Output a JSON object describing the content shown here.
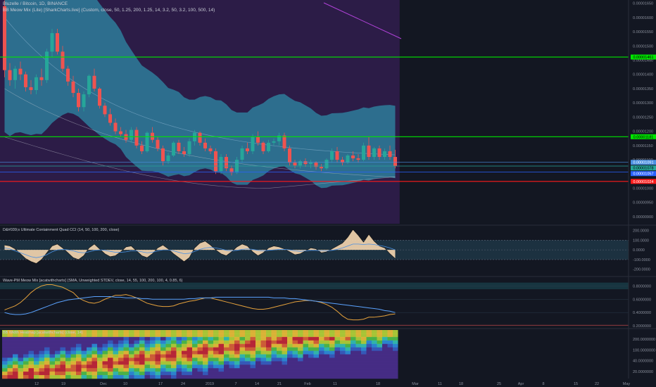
{
  "header": {
    "symbol": "Bluzelle / Bitcoin, 1D, BINANCE",
    "indicator_1": "BB Meow Mix (Lite) [SharkCharts.live] (Custom, close, 50, 1.25, 200, 1.25, 14, 3.2, 50, 3.2, 100, 500, 14)"
  },
  "panes": {
    "cci_label": "D&#039;s Ultimate Containment Quad CCI (14, 50, 100, 200, close)",
    "wave_label": "Wave-PM Meow Mix [acatwithcharts] (SMA, Unweighted STDEV, close, 14, 55, 100, 200, 100, 4, 0.85, 6)",
    "heat_label": "BB Width Heatmap [acatwithcharts] (close, 14)"
  },
  "colors": {
    "background": "#131722",
    "band_fill": "#2e7c9b",
    "purple_zone": "#3b1f5c",
    "bull": "#26a69a",
    "bear": "#ef5350",
    "green_line": "#00e600",
    "red_line": "#ff1a1a",
    "blue_line": "#4a90e2"
  },
  "chart_data": [
    {
      "type": "candlestick",
      "title": "Bluzelle / Bitcoin, 1D, BINANCE",
      "x_tick_labels": [
        "12",
        "19",
        "Dec",
        "10",
        "17",
        "24",
        "2019",
        "7",
        "14",
        "21",
        "Feb",
        "11",
        "18",
        "Mar",
        "11",
        "18",
        "25",
        "Apr",
        "8",
        "15",
        "22",
        "May"
      ],
      "y_tick_labels": [
        "0.00001650",
        "0.00001600",
        "0.00001550",
        "0.00001500",
        "0.00001450",
        "0.00001400",
        "0.00001350",
        "0.00001300",
        "0.00001250",
        "0.00001200",
        "0.00001150",
        "0.00001100",
        "0.00001050",
        "0.00001000",
        "0.00000950",
        "0.00000900"
      ],
      "ylim": [
        8.9e-06,
        1.66e-05
      ],
      "ohlc": [
        [
          1.64e-05,
          1.66e-05,
          1.39e-05,
          1.415e-05
        ],
        [
          1.415e-05,
          1.44e-05,
          1.36e-05,
          1.38e-05
        ],
        [
          1.38e-05,
          1.43e-05,
          1.35e-05,
          1.42e-05
        ],
        [
          1.42e-05,
          1.445e-05,
          1.38e-05,
          1.4e-05
        ],
        [
          1.4e-05,
          1.41e-05,
          1.34e-05,
          1.355e-05
        ],
        [
          1.355e-05,
          1.38e-05,
          1.33e-05,
          1.345e-05
        ],
        [
          1.345e-05,
          1.4e-05,
          1.33e-05,
          1.39e-05
        ],
        [
          1.39e-05,
          1.42e-05,
          1.36e-05,
          1.38e-05
        ],
        [
          1.38e-05,
          1.49e-05,
          1.37e-05,
          1.48e-05
        ],
        [
          1.48e-05,
          1.56e-05,
          1.46e-05,
          1.545e-05
        ],
        [
          1.545e-05,
          1.56e-05,
          1.47e-05,
          1.48e-05
        ],
        [
          1.48e-05,
          1.5e-05,
          1.41e-05,
          1.42e-05
        ],
        [
          1.42e-05,
          1.43e-05,
          1.36e-05,
          1.375e-05
        ],
        [
          1.375e-05,
          1.395e-05,
          1.32e-05,
          1.335e-05
        ],
        [
          1.335e-05,
          1.35e-05,
          1.27e-05,
          1.285e-05
        ],
        [
          1.285e-05,
          1.34e-05,
          1.27e-05,
          1.33e-05
        ],
        [
          1.33e-05,
          1.4e-05,
          1.32e-05,
          1.395e-05
        ],
        [
          1.395e-05,
          1.42e-05,
          1.34e-05,
          1.35e-05
        ],
        [
          1.35e-05,
          1.355e-05,
          1.28e-05,
          1.29e-05
        ],
        [
          1.29e-05,
          1.3e-05,
          1.25e-05,
          1.26e-05
        ],
        [
          1.26e-05,
          1.28e-05,
          1.22e-05,
          1.23e-05
        ],
        [
          1.23e-05,
          1.245e-05,
          1.19e-05,
          1.2e-05
        ],
        [
          1.2e-05,
          1.215e-05,
          1.18e-05,
          1.19e-05
        ],
        [
          1.19e-05,
          1.205e-05,
          1.16e-05,
          1.17e-05
        ],
        [
          1.17e-05,
          1.215e-05,
          1.16e-05,
          1.205e-05
        ],
        [
          1.205e-05,
          1.215e-05,
          1.14e-05,
          1.15e-05
        ],
        [
          1.15e-05,
          1.165e-05,
          1.12e-05,
          1.13e-05
        ],
        [
          1.13e-05,
          1.2e-05,
          1.125e-05,
          1.195e-05
        ],
        [
          1.195e-05,
          1.215e-05,
          1.16e-05,
          1.17e-05
        ],
        [
          1.17e-05,
          1.18e-05,
          1.13e-05,
          1.14e-05
        ],
        [
          1.14e-05,
          1.15e-05,
          1.08e-05,
          1.095e-05
        ],
        [
          1.095e-05,
          1.125e-05,
          1.085e-05,
          1.115e-05
        ],
        [
          1.115e-05,
          1.165e-05,
          1.11e-05,
          1.16e-05
        ],
        [
          1.16e-05,
          1.17e-05,
          1.12e-05,
          1.13e-05
        ],
        [
          1.13e-05,
          1.145e-05,
          1.11e-05,
          1.12e-05
        ],
        [
          1.12e-05,
          1.175e-05,
          1.11e-05,
          1.165e-05
        ],
        [
          1.165e-05,
          1.205e-05,
          1.15e-05,
          1.195e-05
        ],
        [
          1.195e-05,
          1.2e-05,
          1.15e-05,
          1.16e-05
        ],
        [
          1.16e-05,
          1.175e-05,
          1.13e-05,
          1.14e-05
        ],
        [
          1.14e-05,
          1.15e-05,
          1.12e-05,
          1.13e-05
        ],
        [
          1.13e-05,
          1.14e-05,
          1.05e-05,
          1.06e-05
        ],
        [
          1.06e-05,
          1.12e-05,
          1.05e-05,
          1.11e-05
        ],
        [
          1.11e-05,
          1.12e-05,
          1.06e-05,
          1.07e-05
        ],
        [
          1.07e-05,
          1.08e-05,
          1.045e-05,
          1.055e-05
        ],
        [
          1.055e-05,
          1.11e-05,
          1.05e-05,
          1.1e-05
        ],
        [
          1.1e-05,
          1.15e-05,
          1.09e-05,
          1.14e-05
        ],
        [
          1.14e-05,
          1.16e-05,
          1.12e-05,
          1.13e-05
        ],
        [
          1.13e-05,
          1.19e-05,
          1.12e-05,
          1.18e-05
        ],
        [
          1.18e-05,
          1.2e-05,
          1.15e-05,
          1.16e-05
        ],
        [
          1.16e-05,
          1.165e-05,
          1.12e-05,
          1.13e-05
        ],
        [
          1.13e-05,
          1.17e-05,
          1.125e-05,
          1.16e-05
        ],
        [
          1.16e-05,
          1.175e-05,
          1.15e-05,
          1.165e-05
        ],
        [
          1.165e-05,
          1.195e-05,
          1.15e-05,
          1.185e-05
        ],
        [
          1.185e-05,
          1.195e-05,
          1.13e-05,
          1.14e-05
        ],
        [
          1.14e-05,
          1.15e-05,
          1.08e-05,
          1.09e-05
        ],
        [
          1.09e-05,
          1.1e-05,
          1.07e-05,
          1.08e-05
        ],
        [
          1.08e-05,
          1.1e-05,
          1.07e-05,
          1.095e-05
        ],
        [
          1.095e-05,
          1.105e-05,
          1.075e-05,
          1.085e-05
        ],
        [
          1.085e-05,
          1.1e-05,
          1.07e-05,
          1.09e-05
        ],
        [
          1.09e-05,
          1.095e-05,
          1.065e-05,
          1.075e-05
        ],
        [
          1.075e-05,
          1.085e-05,
          1.06e-05,
          1.07e-05
        ],
        [
          1.07e-05,
          1.105e-05,
          1.065e-05,
          1.1e-05
        ],
        [
          1.1e-05,
          1.14e-05,
          1.09e-05,
          1.13e-05
        ],
        [
          1.13e-05,
          1.145e-05,
          1.09e-05,
          1.1e-05
        ],
        [
          1.1e-05,
          1.11e-05,
          1.08e-05,
          1.09e-05
        ],
        [
          1.09e-05,
          1.12e-05,
          1.085e-05,
          1.115e-05
        ],
        [
          1.115e-05,
          1.13e-05,
          1.095e-05,
          1.105e-05
        ],
        [
          1.105e-05,
          1.12e-05,
          1.09e-05,
          1.1e-05
        ],
        [
          1.1e-05,
          1.16e-05,
          1.095e-05,
          1.15e-05
        ],
        [
          1.15e-05,
          1.18e-05,
          1.1e-05,
          1.11e-05
        ],
        [
          1.11e-05,
          1.145e-05,
          1.1e-05,
          1.14e-05
        ],
        [
          1.14e-05,
          1.15e-05,
          1.1e-05,
          1.11e-05
        ],
        [
          1.11e-05,
          1.14e-05,
          1.1e-05,
          1.13e-05
        ],
        [
          1.13e-05,
          1.15e-05,
          1.1e-05,
          1.11e-05
        ],
        [
          1.11e-05,
          1.135e-05,
          1.07e-05,
          1.078e-05
        ]
      ],
      "horizontal_levels": [
        {
          "label": "0.00001461",
          "value": 1.461e-05,
          "color": "#00e600"
        },
        {
          "label": "0.00001181",
          "value": 1.181e-05,
          "color": "#00e600"
        },
        {
          "label": "0.00001091",
          "value": 1.091e-05,
          "color": "#4a90e2"
        },
        {
          "label": "0.00001078",
          "value": 1.078e-05,
          "color": "#26a69a"
        },
        {
          "label": "0.00001057",
          "value": 1.057e-05,
          "color": "#2962ff"
        },
        {
          "label": "0.00001024",
          "value": 1.024e-05,
          "color": "#ff1a1a"
        }
      ]
    },
    {
      "type": "line",
      "title": "D&#039;s Ultimate Containment Quad CCI (14, 50, 100, 200, close)",
      "y_tick_labels": [
        "200.0000",
        "100.0000",
        "0.0000",
        "-100.0000",
        "-200.0000"
      ],
      "ylim": [
        -260,
        240
      ],
      "series": [
        {
          "values": [
            50,
            40,
            10,
            -40,
            -90,
            -120,
            -140,
            -100,
            -30,
            40,
            60,
            20,
            -30,
            -80,
            -100,
            -60,
            20,
            60,
            10,
            -40,
            -70,
            -60,
            -20,
            30,
            40,
            -10,
            -60,
            -80,
            -40,
            20,
            50,
            10,
            -40,
            -80,
            -120,
            -80,
            20,
            70,
            90,
            50,
            0,
            -40,
            -60,
            -20,
            30,
            60,
            40,
            -20,
            -60,
            -30,
            20,
            40,
            30,
            10,
            -20,
            -50,
            -40,
            -10,
            20,
            10,
            -30,
            -20,
            10,
            40,
            70,
            130,
            210,
            150,
            80,
            160,
            90,
            40,
            20,
            -40,
            -90
          ]
        },
        {
          "values": [
            20,
            10,
            -10,
            -30,
            -50,
            -70,
            -80,
            -70,
            -50,
            -20,
            0,
            5,
            0,
            -10,
            -25,
            -30,
            -20,
            -5,
            0,
            -5,
            -15,
            -25,
            -25,
            -20,
            -10,
            -10,
            -20,
            -30,
            -25,
            -10,
            0,
            0,
            -10,
            -25,
            -40,
            -35,
            -15,
            5,
            20,
            25,
            20,
            10,
            -5,
            -10,
            -5,
            5,
            10,
            5,
            -5,
            -10,
            -5,
            0,
            5,
            5,
            0,
            -10,
            -15,
            -10,
            -5,
            -5,
            -10,
            -10,
            -5,
            5,
            20,
            40,
            60,
            60,
            55,
            60,
            55,
            45,
            35,
            20,
            0
          ]
        }
      ]
    },
    {
      "type": "line",
      "title": "Wave-PM Meow Mix [acatwithcharts] (SMA, Unweighted STDEV, close, 14, 55, 100, 200, 100, 4, 0.85, 6)",
      "y_tick_labels": [
        "0.8000000",
        "0.6000000",
        "0.4000000",
        "0.2000000"
      ],
      "ylim": [
        0.18,
        0.92
      ],
      "series": [
        {
          "values": [
            0.44,
            0.47,
            0.5,
            0.55,
            0.62,
            0.7,
            0.76,
            0.8,
            0.82,
            0.82,
            0.8,
            0.78,
            0.74,
            0.7,
            0.62,
            0.58,
            0.55,
            0.54,
            0.56,
            0.6,
            0.63,
            0.66,
            0.66,
            0.67,
            0.65,
            0.62,
            0.58,
            0.54,
            0.52,
            0.5,
            0.49,
            0.49,
            0.5,
            0.53,
            0.55,
            0.57,
            0.58,
            0.6,
            0.62,
            0.62,
            0.6,
            0.58,
            0.56,
            0.54,
            0.52,
            0.5,
            0.48,
            0.46,
            0.45,
            0.45,
            0.46,
            0.48,
            0.5,
            0.52,
            0.54,
            0.56,
            0.57,
            0.58,
            0.58,
            0.57,
            0.55,
            0.52,
            0.48,
            0.42,
            0.35,
            0.3,
            0.29,
            0.29,
            0.3,
            0.33,
            0.33,
            0.34,
            0.35,
            0.37,
            0.38
          ]
        },
        {
          "values": [
            0.4,
            0.38,
            0.37,
            0.37,
            0.38,
            0.4,
            0.43,
            0.46,
            0.49,
            0.52,
            0.55,
            0.57,
            0.59,
            0.6,
            0.61,
            0.62,
            0.63,
            0.64,
            0.64,
            0.64,
            0.64,
            0.63,
            0.63,
            0.62,
            0.62,
            0.62,
            0.61,
            0.61,
            0.6,
            0.6,
            0.6,
            0.6,
            0.6,
            0.6,
            0.6,
            0.61,
            0.61,
            0.62,
            0.62,
            0.62,
            0.63,
            0.63,
            0.63,
            0.63,
            0.63,
            0.63,
            0.63,
            0.63,
            0.63,
            0.63,
            0.63,
            0.62,
            0.62,
            0.62,
            0.61,
            0.61,
            0.6,
            0.59,
            0.58,
            0.57,
            0.56,
            0.55,
            0.54,
            0.53,
            0.52,
            0.51,
            0.5,
            0.49,
            0.48,
            0.47,
            0.46,
            0.45,
            0.43,
            0.42,
            0.4
          ]
        }
      ]
    },
    {
      "type": "heatmap",
      "title": "BB Width Heatmap [acatwithcharts] (close, 14)",
      "y_tick_labels": [
        "200.0000000",
        "100.0000000",
        "40.0000000",
        "20.0000000"
      ]
    }
  ]
}
